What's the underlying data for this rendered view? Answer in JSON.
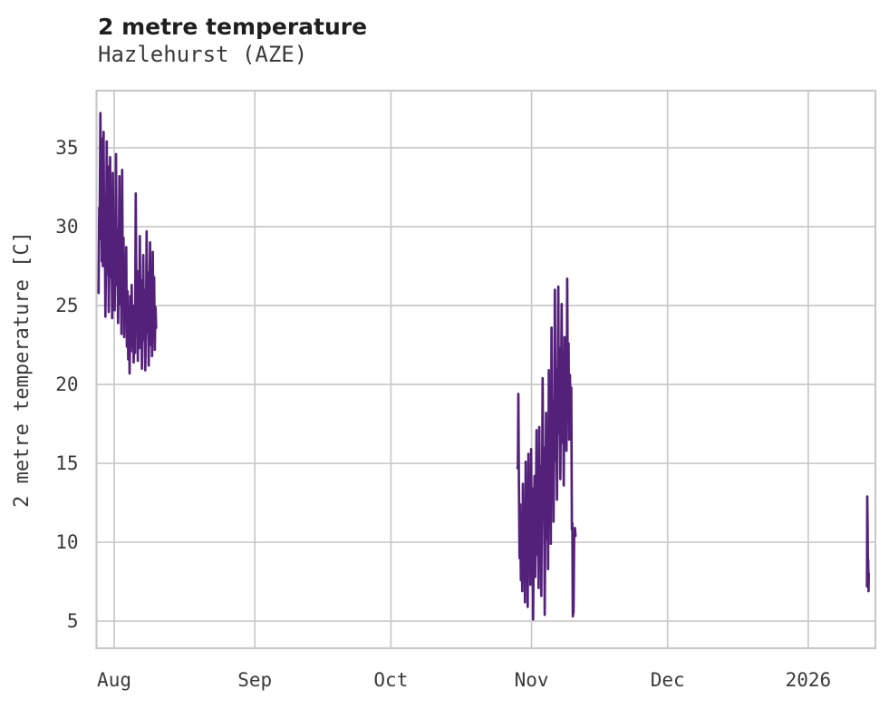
{
  "header": {
    "title": "2 metre temperature",
    "subtitle": "Hazlehurst (AZE)"
  },
  "chart_data": {
    "type": "line",
    "title": "2 metre temperature",
    "subtitle": "Hazlehurst (AZE)",
    "xlabel": "",
    "ylabel": "2 metre temperature [C]",
    "x_unit": "days since Aug 1",
    "xlim": [
      -3.9,
      167.8
    ],
    "ylim": [
      3.28,
      38.62
    ],
    "y_ticks": [
      5,
      10,
      15,
      20,
      25,
      30,
      35
    ],
    "x_ticks": [
      {
        "day": 0,
        "label": "Aug"
      },
      {
        "day": 31,
        "label": "Sep"
      },
      {
        "day": 61,
        "label": "Oct"
      },
      {
        "day": 92,
        "label": "Nov"
      },
      {
        "day": 122,
        "label": "Dec"
      },
      {
        "day": 153,
        "label": "2026"
      }
    ],
    "grid": true,
    "legend": false,
    "line_color": "#54217a",
    "grid_color": "#c9c9c9",
    "series": [
      {
        "name": "2 metre temperature",
        "segments": [
          [
            [
              -3.45,
              25.8
            ],
            [
              -3.3,
              31.2
            ],
            [
              -3.22,
              29.2
            ],
            [
              -3.05,
              37.2
            ],
            [
              -2.95,
              32.8
            ],
            [
              -2.85,
              35.6
            ],
            [
              -2.72,
              27.8
            ],
            [
              -2.6,
              30.6
            ],
            [
              -2.5,
              27.5
            ],
            [
              -2.35,
              36.0
            ],
            [
              -2.22,
              29.6
            ],
            [
              -2.1,
              31.4
            ],
            [
              -1.95,
              24.3
            ],
            [
              -1.8,
              28.2
            ],
            [
              -1.65,
              35.4
            ],
            [
              -1.5,
              27.0
            ],
            [
              -1.35,
              33.8
            ],
            [
              -1.2,
              24.6
            ],
            [
              -1.05,
              28.4
            ],
            [
              -0.9,
              34.4
            ],
            [
              -0.75,
              26.8
            ],
            [
              -0.6,
              30.2
            ],
            [
              -0.45,
              24.2
            ],
            [
              -0.3,
              33.4
            ],
            [
              -0.15,
              27.4
            ],
            [
              0.0,
              29.1
            ],
            [
              0.1,
              24.7
            ],
            [
              0.25,
              28.6
            ],
            [
              0.4,
              34.6
            ],
            [
              0.55,
              26.3
            ],
            [
              0.7,
              29.8
            ],
            [
              0.85,
              23.9
            ],
            [
              1.0,
              27.7
            ],
            [
              1.15,
              33.2
            ],
            [
              1.3,
              25.1
            ],
            [
              1.45,
              28.9
            ],
            [
              1.6,
              23.2
            ],
            [
              1.75,
              33.6
            ],
            [
              1.9,
              26.0
            ],
            [
              2.05,
              29.3
            ],
            [
              2.2,
              23.0
            ],
            [
              2.35,
              28.1
            ],
            [
              2.5,
              25.2
            ],
            [
              2.65,
              28.7
            ],
            [
              2.8,
              22.4
            ],
            [
              2.95,
              25.9
            ],
            [
              3.1,
              21.6
            ],
            [
              3.25,
              24.9
            ],
            [
              3.4,
              20.7
            ],
            [
              3.55,
              25.6
            ],
            [
              3.7,
              22.1
            ],
            [
              3.85,
              26.3
            ],
            [
              4.0,
              22.7
            ],
            [
              4.15,
              25.0
            ],
            [
              4.3,
              21.4
            ],
            [
              4.45,
              24.4
            ],
            [
              4.6,
              22.0
            ],
            [
              4.75,
              32.1
            ],
            [
              4.9,
              24.6
            ],
            [
              5.05,
              27.2
            ],
            [
              5.2,
              21.5
            ],
            [
              5.35,
              25.3
            ],
            [
              5.5,
              22.3
            ],
            [
              5.65,
              29.4
            ],
            [
              5.8,
              23.6
            ],
            [
              5.95,
              26.6
            ],
            [
              6.1,
              21.0
            ],
            [
              6.25,
              24.2
            ],
            [
              6.4,
              28.2
            ],
            [
              6.55,
              22.8
            ],
            [
              6.7,
              26.0
            ],
            [
              6.85,
              20.9
            ],
            [
              7.0,
              24.0
            ],
            [
              7.15,
              29.7
            ],
            [
              7.3,
              23.3
            ],
            [
              7.45,
              27.1
            ],
            [
              7.6,
              21.2
            ],
            [
              7.75,
              25.5
            ],
            [
              7.9,
              29.0
            ],
            [
              8.05,
              22.5
            ],
            [
              8.2,
              26.4
            ],
            [
              8.35,
              21.8
            ],
            [
              8.5,
              28.4
            ],
            [
              8.65,
              23.0
            ],
            [
              8.8,
              26.8
            ],
            [
              8.95,
              22.2
            ],
            [
              9.1,
              24.9
            ],
            [
              9.25,
              23.6
            ]
          ],
          [
            [
              88.9,
              14.7
            ],
            [
              89.0,
              14.9
            ],
            [
              89.1,
              19.4
            ],
            [
              89.2,
              14.6
            ],
            [
              89.35,
              9.0
            ],
            [
              89.5,
              12.4
            ],
            [
              89.65,
              7.6
            ],
            [
              89.8,
              11.0
            ],
            [
              89.95,
              6.9
            ],
            [
              90.1,
              13.7
            ],
            [
              90.25,
              8.2
            ],
            [
              90.4,
              12.0
            ],
            [
              90.55,
              6.2
            ],
            [
              90.7,
              15.1
            ],
            [
              90.85,
              9.4
            ],
            [
              91.0,
              12.6
            ],
            [
              91.15,
              5.9
            ],
            [
              91.3,
              15.6
            ],
            [
              91.45,
              8.8
            ],
            [
              91.6,
              11.8
            ],
            [
              91.75,
              7.3
            ],
            [
              91.9,
              15.9
            ],
            [
              92.05,
              9.7
            ],
            [
              92.2,
              13.4
            ],
            [
              92.35,
              5.1
            ],
            [
              92.5,
              10.9
            ],
            [
              92.65,
              14.2
            ],
            [
              92.8,
              7.8
            ],
            [
              92.95,
              12.2
            ],
            [
              93.1,
              17.1
            ],
            [
              93.25,
              9.2
            ],
            [
              93.4,
              13.9
            ],
            [
              93.55,
              7.1
            ],
            [
              93.7,
              17.3
            ],
            [
              93.85,
              10.6
            ],
            [
              94.0,
              14.8
            ],
            [
              94.15,
              6.6
            ],
            [
              94.3,
              12.8
            ],
            [
              94.45,
              20.4
            ],
            [
              94.6,
              11.5
            ],
            [
              94.75,
              16.0
            ],
            [
              94.9,
              5.4
            ],
            [
              95.05,
              12.1
            ],
            [
              95.2,
              18.2
            ],
            [
              95.35,
              10.2
            ],
            [
              95.5,
              15.5
            ],
            [
              95.65,
              8.3
            ],
            [
              95.8,
              20.9
            ],
            [
              95.95,
              13.0
            ],
            [
              96.1,
              17.6
            ],
            [
              96.25,
              9.9
            ],
            [
              96.4,
              23.6
            ],
            [
              96.55,
              14.4
            ],
            [
              96.7,
              19.0
            ],
            [
              96.85,
              11.3
            ],
            [
              97.0,
              16.6
            ],
            [
              97.15,
              26.0
            ],
            [
              97.3,
              15.2
            ],
            [
              97.45,
              21.0
            ],
            [
              97.6,
              12.7
            ],
            [
              97.75,
              18.4
            ],
            [
              97.9,
              26.2
            ],
            [
              98.05,
              16.9
            ],
            [
              98.2,
              22.3
            ],
            [
              98.35,
              14.0
            ],
            [
              98.5,
              19.6
            ],
            [
              98.65,
              25.1
            ],
            [
              98.8,
              16.3
            ],
            [
              98.95,
              21.6
            ],
            [
              99.1,
              13.6
            ],
            [
              99.25,
              23.0
            ],
            [
              99.4,
              17.9
            ],
            [
              99.55,
              22.0
            ],
            [
              99.7,
              15.8
            ],
            [
              99.85,
              26.7
            ],
            [
              100.0,
              19.2
            ],
            [
              100.15,
              22.6
            ],
            [
              100.3,
              16.5
            ],
            [
              100.45,
              20.6
            ],
            [
              100.6,
              18.8
            ],
            [
              100.75,
              19.8
            ],
            [
              100.9,
              10.8
            ],
            [
              101.0,
              11.2
            ],
            [
              101.1,
              5.3
            ],
            [
              101.25,
              5.6
            ],
            [
              101.4,
              10.5
            ],
            [
              101.55,
              10.9
            ],
            [
              101.7,
              10.4
            ]
          ],
          [
            [
              165.95,
              7.2
            ],
            [
              166.0,
              12.9
            ],
            [
              166.08,
              10.9
            ],
            [
              166.15,
              8.5
            ],
            [
              166.2,
              8.9
            ],
            [
              166.28,
              6.9
            ],
            [
              166.35,
              8.0
            ]
          ]
        ]
      }
    ]
  },
  "colors": {
    "line": "#54217a",
    "grid": "#c9c9c9",
    "title_text": "#1f1f1f",
    "label_text": "#3a3a3a",
    "background": "#ffffff"
  }
}
